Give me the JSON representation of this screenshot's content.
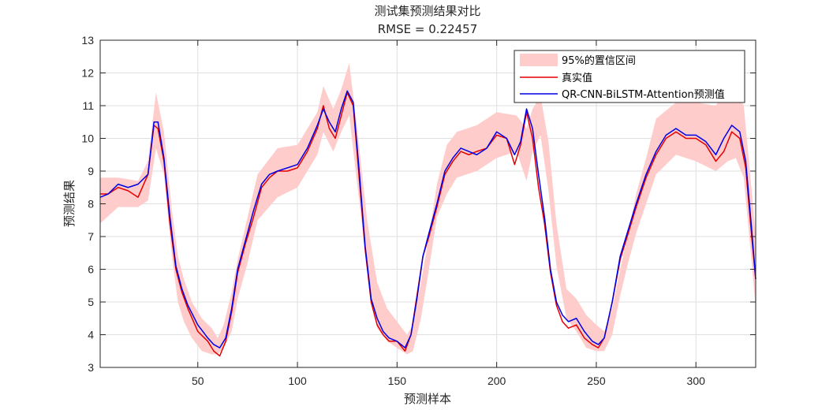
{
  "chart_data": {
    "type": "line",
    "title": "测试集预测结果对比",
    "subtitle": "RMSE = 0.22457",
    "xlabel": "预测样本",
    "ylabel": "预测结果",
    "xlim": [
      1,
      330
    ],
    "ylim": [
      3,
      13
    ],
    "xticks": [
      50,
      100,
      150,
      200,
      250,
      300
    ],
    "yticks": [
      3,
      4,
      5,
      6,
      7,
      8,
      9,
      10,
      11,
      12,
      13
    ],
    "grid": true,
    "legend_position": "top-right",
    "series": [
      {
        "name": "95%的置信区间",
        "kind": "band",
        "color": "#ffcccc",
        "x": [
          1,
          10,
          20,
          25,
          29,
          33,
          37,
          40,
          43,
          47,
          52,
          57,
          60,
          63,
          67,
          70,
          75,
          80,
          90,
          100,
          110,
          113,
          118,
          122,
          126,
          130,
          135,
          140,
          145,
          150,
          155,
          158,
          162,
          166,
          170,
          175,
          180,
          190,
          200,
          210,
          215,
          218,
          222,
          226,
          230,
          235,
          240,
          245,
          250,
          254,
          258,
          262,
          266,
          270,
          275,
          280,
          290,
          300,
          310,
          316,
          320,
          324,
          328,
          330
        ],
        "lower": [
          7.4,
          7.9,
          7.9,
          8.1,
          9.7,
          8.9,
          6.4,
          5.0,
          4.4,
          3.9,
          3.5,
          3.4,
          3.4,
          3.6,
          4.1,
          5.1,
          6.2,
          7.5,
          8.2,
          8.5,
          9.5,
          10.2,
          9.6,
          10.2,
          10.7,
          8.6,
          6.0,
          4.2,
          3.8,
          3.6,
          3.4,
          3.5,
          4.5,
          6.0,
          7.6,
          8.3,
          8.8,
          9.0,
          9.4,
          9.6,
          8.7,
          9.6,
          10.1,
          8.4,
          6.1,
          4.5,
          4.1,
          3.6,
          3.5,
          3.5,
          4.0,
          5.2,
          6.2,
          7.1,
          8.0,
          8.9,
          9.5,
          9.3,
          9.0,
          9.3,
          9.4,
          8.8,
          6.2,
          4.8
        ],
        "upper": [
          8.8,
          8.8,
          8.7,
          9.3,
          11.4,
          10.2,
          7.8,
          6.4,
          5.7,
          5.0,
          4.5,
          4.2,
          3.9,
          4.3,
          5.3,
          6.3,
          7.6,
          8.9,
          9.7,
          9.8,
          10.8,
          11.6,
          10.9,
          11.5,
          12.3,
          10.3,
          7.5,
          5.6,
          4.8,
          4.4,
          4.0,
          4.3,
          5.6,
          7.0,
          8.6,
          9.8,
          10.2,
          10.4,
          10.8,
          10.7,
          10.3,
          10.9,
          11.3,
          9.9,
          7.4,
          5.4,
          5.1,
          4.6,
          4.3,
          4.1,
          4.8,
          6.0,
          7.1,
          8.3,
          9.4,
          10.6,
          11.1,
          11.1,
          11.0,
          11.6,
          11.5,
          11.0,
          8.4,
          7.0
        ]
      },
      {
        "name": "真实值",
        "kind": "line",
        "color": "#e60000",
        "x": [
          1,
          5,
          10,
          15,
          20,
          25,
          28,
          30,
          33,
          36,
          39,
          42,
          45,
          50,
          55,
          58,
          61,
          64,
          67,
          70,
          74,
          78,
          82,
          86,
          90,
          95,
          100,
          105,
          110,
          113,
          116,
          119,
          122,
          125,
          128,
          131,
          134,
          137,
          140,
          143,
          146,
          150,
          154,
          157,
          160,
          163,
          166,
          170,
          174,
          178,
          182,
          186,
          190,
          195,
          200,
          205,
          209,
          212,
          215,
          218,
          221,
          224,
          227,
          230,
          233,
          236,
          240,
          244,
          248,
          251,
          254,
          258,
          262,
          266,
          270,
          275,
          280,
          285,
          290,
          295,
          300,
          305,
          310,
          314,
          318,
          322,
          325,
          328,
          330
        ],
        "y": [
          8.3,
          8.3,
          8.5,
          8.4,
          8.2,
          8.9,
          10.4,
          10.3,
          9.3,
          7.4,
          6.0,
          5.3,
          4.8,
          4.1,
          3.8,
          3.5,
          3.35,
          3.8,
          4.7,
          5.9,
          6.8,
          7.6,
          8.5,
          8.8,
          9.0,
          9.0,
          9.1,
          9.6,
          10.3,
          11.0,
          10.3,
          10.0,
          10.7,
          11.4,
          11.0,
          8.8,
          6.6,
          5.0,
          4.3,
          4.0,
          3.8,
          3.8,
          3.5,
          4.0,
          5.2,
          6.4,
          7.0,
          7.9,
          8.9,
          9.3,
          9.6,
          9.5,
          9.6,
          9.7,
          10.1,
          10.0,
          9.2,
          9.8,
          10.8,
          10.0,
          8.5,
          7.4,
          5.9,
          4.9,
          4.4,
          4.2,
          4.3,
          3.9,
          3.7,
          3.6,
          3.9,
          5.0,
          6.3,
          7.1,
          7.9,
          8.8,
          9.5,
          10.0,
          10.2,
          10.0,
          10.0,
          9.8,
          9.3,
          9.6,
          10.2,
          10.0,
          9.1,
          7.0,
          5.7
        ]
      },
      {
        "name": "QR-CNN-BiLSTM-Attention预测值",
        "kind": "line",
        "color": "#0000e6",
        "x": [
          1,
          5,
          10,
          15,
          20,
          25,
          28,
          30,
          33,
          36,
          39,
          42,
          45,
          50,
          55,
          58,
          61,
          64,
          67,
          70,
          74,
          78,
          82,
          86,
          90,
          95,
          100,
          105,
          110,
          113,
          116,
          119,
          122,
          125,
          128,
          131,
          134,
          137,
          140,
          143,
          146,
          150,
          154,
          157,
          160,
          163,
          166,
          170,
          174,
          178,
          182,
          186,
          190,
          195,
          200,
          205,
          209,
          212,
          215,
          218,
          221,
          224,
          227,
          230,
          233,
          236,
          240,
          244,
          248,
          251,
          254,
          258,
          262,
          266,
          270,
          275,
          280,
          285,
          290,
          295,
          300,
          305,
          310,
          314,
          318,
          322,
          325,
          328,
          330
        ],
        "y": [
          8.2,
          8.3,
          8.6,
          8.5,
          8.6,
          8.9,
          10.5,
          10.5,
          9.4,
          7.6,
          6.1,
          5.4,
          4.9,
          4.3,
          3.9,
          3.7,
          3.6,
          3.9,
          4.8,
          6.0,
          6.9,
          7.8,
          8.6,
          8.9,
          9.0,
          9.1,
          9.2,
          9.7,
          10.4,
          10.9,
          10.5,
          10.2,
          10.9,
          11.45,
          11.1,
          9.0,
          6.7,
          5.1,
          4.5,
          4.1,
          3.9,
          3.8,
          3.6,
          4.0,
          5.1,
          6.4,
          7.1,
          8.0,
          9.0,
          9.4,
          9.7,
          9.6,
          9.5,
          9.7,
          10.2,
          10.0,
          9.5,
          9.9,
          10.9,
          10.3,
          8.9,
          7.6,
          6.0,
          5.0,
          4.6,
          4.4,
          4.5,
          4.1,
          3.8,
          3.7,
          3.9,
          5.0,
          6.4,
          7.2,
          8.0,
          8.9,
          9.6,
          10.1,
          10.3,
          10.1,
          10.1,
          9.9,
          9.5,
          10.0,
          10.4,
          10.2,
          9.3,
          7.2,
          5.7
        ]
      }
    ]
  }
}
